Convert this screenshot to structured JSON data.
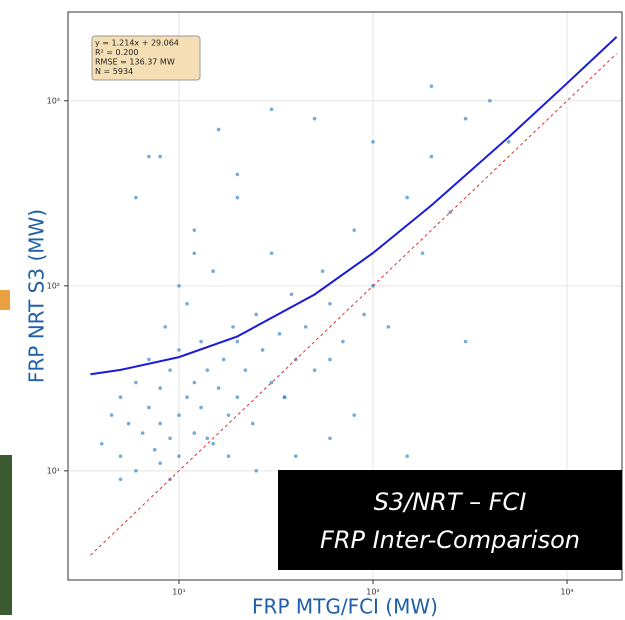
{
  "chart_data": {
    "type": "scatter",
    "xlabel": "FRP MTG/FCI (MW)",
    "ylabel": "FRP NRT S3 (MW)",
    "log_x": true,
    "log_y": true,
    "grid": true,
    "xlim": [
      2.68,
      1920
    ],
    "ylim": [
      2.57,
      3020
    ],
    "xticks": [
      {
        "value": 10,
        "label": "10¹"
      },
      {
        "value": 100,
        "label": "10²"
      },
      {
        "value": 1000,
        "label": "10³"
      }
    ],
    "yticks": [
      {
        "value": 10,
        "label": "10¹"
      },
      {
        "value": 100,
        "label": "10²"
      },
      {
        "value": 1000,
        "label": "10³"
      }
    ],
    "annotation": [
      "y = 1.214x + 29.064",
      "R² = 0.200",
      "RMSE = 136.37 MW",
      "N = 5934"
    ],
    "overlay": [
      "S3/NRT – FCI",
      "FRP Inter-Comparison"
    ],
    "series": [
      {
        "style": "points",
        "color": "#3a87c4",
        "x": [
          4,
          4.5,
          5,
          5,
          5.5,
          6,
          6,
          6.5,
          7,
          7,
          7.5,
          8,
          8,
          8.5,
          9,
          9,
          10,
          10,
          10,
          11,
          11,
          12,
          12,
          13,
          13,
          14,
          15,
          15,
          16,
          17,
          18,
          19,
          20,
          20,
          22,
          24,
          25,
          27,
          30,
          30,
          33,
          35,
          38,
          40,
          45,
          50,
          55,
          60,
          70,
          80,
          90,
          100,
          120,
          150,
          180,
          200,
          250,
          300,
          400,
          500,
          6,
          7,
          8,
          9,
          10,
          12,
          14,
          16,
          18,
          20,
          25,
          30,
          40,
          50,
          60,
          80,
          100,
          150,
          200,
          300,
          5,
          8,
          12,
          20,
          35,
          60
        ],
        "values": [
          14,
          20,
          12,
          25,
          18,
          10,
          30,
          16,
          22,
          40,
          13,
          18,
          28,
          60,
          15,
          35,
          12,
          20,
          45,
          25,
          80,
          16,
          30,
          22,
          50,
          35,
          14,
          120,
          28,
          40,
          20,
          60,
          25,
          300,
          35,
          18,
          70,
          45,
          30,
          150,
          55,
          25,
          90,
          40,
          60,
          35,
          120,
          80,
          50,
          200,
          70,
          100,
          60,
          300,
          150,
          500,
          250,
          800,
          1000,
          600,
          300,
          500,
          11,
          9,
          100,
          200,
          15,
          700,
          12,
          400,
          10,
          900,
          12,
          800,
          15,
          20,
          600,
          12,
          1200,
          50,
          9,
          500,
          150,
          50,
          25,
          40
        ]
      },
      {
        "style": "line",
        "color": "#1a1adb",
        "x": [
          3.5,
          5,
          10,
          20,
          50,
          100,
          200,
          500,
          1000,
          1800
        ],
        "values": [
          33.3,
          35.1,
          41.2,
          53.3,
          89.8,
          150.5,
          271.9,
          636.1,
          1243,
          2214
        ]
      },
      {
        "style": "dashed",
        "color": "#e03030",
        "x": [
          3.5,
          1800
        ],
        "values": [
          3.5,
          1800
        ]
      }
    ]
  }
}
